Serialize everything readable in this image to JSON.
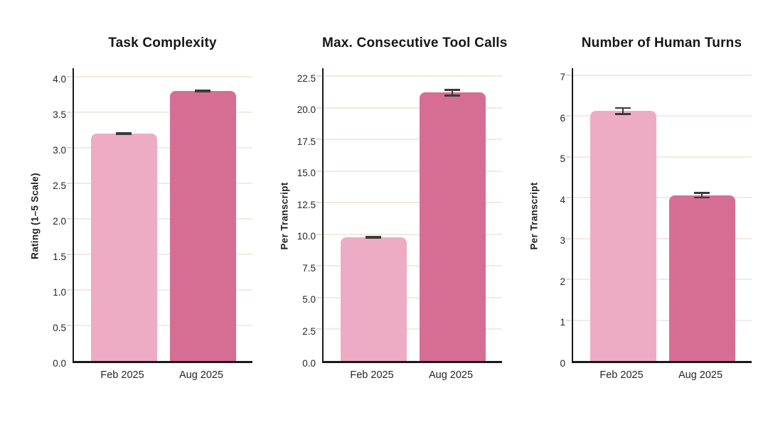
{
  "figure": {
    "background": "#ffffff",
    "bar_colors": [
      "#EDACC3",
      "#D66E93"
    ],
    "spine_color": "#1a1a1a",
    "grid_color": "#F5E9E5",
    "error_color": "#3a3a3a",
    "text_color": "#161616"
  },
  "chart_data": [
    {
      "type": "bar",
      "title": "Task Complexity",
      "ylabel": "Rating (1–5 Scale)",
      "xlabel": "",
      "categories": [
        "Feb 2025",
        "Aug 2025"
      ],
      "values": [
        3.2,
        3.8
      ],
      "errors": [
        0.02,
        0.02
      ],
      "ytick_values": [
        0,
        0.5,
        1,
        1.5,
        2,
        2.5,
        3,
        3.5,
        4
      ],
      "ytick_labels": [
        "0.0",
        "0.5",
        "1.0",
        "1.5",
        "2.0",
        "2.5",
        "3.0",
        "3.5",
        "4.0"
      ],
      "ylim": [
        0,
        4.15
      ],
      "grid": true,
      "legend": "none"
    },
    {
      "type": "bar",
      "title": "Max. Consecutive Tool Calls",
      "ylabel": "Per Transcript",
      "xlabel": "",
      "categories": [
        "Feb 2025",
        "Aug 2025"
      ],
      "values": [
        9.75,
        21.2
      ],
      "errors": [
        0.12,
        0.3
      ],
      "ytick_values": [
        0,
        2.5,
        5,
        7.5,
        10,
        12.5,
        15,
        17.5,
        20,
        22.5
      ],
      "ytick_labels": [
        "0.0",
        "2.5",
        "5.0",
        "7.5",
        "10.0",
        "12.5",
        "15.0",
        "17.5",
        "20.0",
        "22.5"
      ],
      "ylim": [
        0,
        23.3
      ],
      "grid": true,
      "legend": "none"
    },
    {
      "type": "bar",
      "title": "Number of Human Turns",
      "ylabel": "Per Transcript",
      "xlabel": "",
      "categories": [
        "Feb 2025",
        "Aug 2025"
      ],
      "values": [
        6.12,
        4.06
      ],
      "errors": [
        0.1,
        0.08
      ],
      "ytick_values": [
        0,
        1,
        2,
        3,
        4,
        5,
        6,
        7
      ],
      "ytick_labels": [
        "0",
        "1",
        "2",
        "3",
        "4",
        "5",
        "6",
        "7"
      ],
      "ylim": [
        0,
        7.22
      ],
      "grid": true,
      "legend": "none"
    }
  ]
}
